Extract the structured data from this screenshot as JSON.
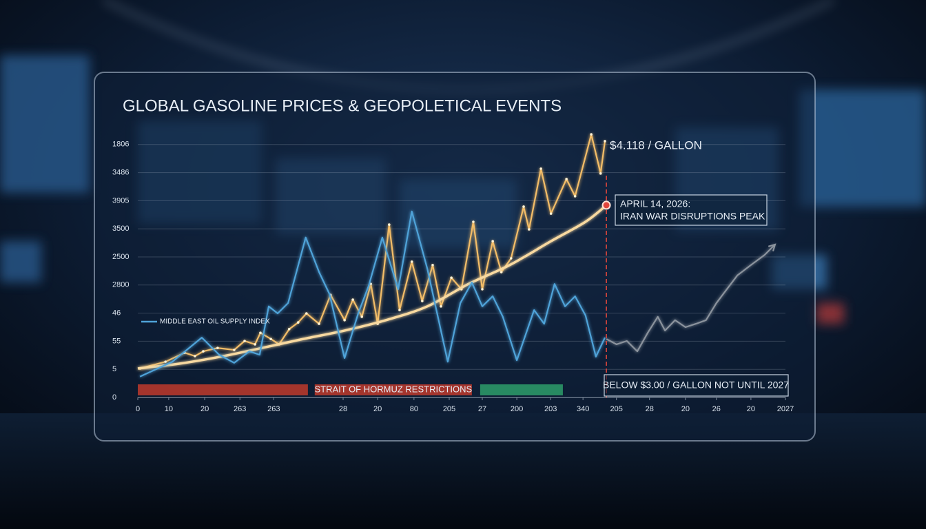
{
  "chart_data": {
    "type": "line",
    "title": "GLOBAL GASOLINE PRICES & GEOPOLETICAL EVENTS",
    "xlim": [
      0,
      18.01
    ],
    "xticks": [
      0,
      {
        "value": 0.86,
        "label": "10"
      },
      {
        "value": 1.86,
        "label": "20"
      },
      {
        "value": 2.84,
        "label": "263"
      },
      {
        "value": 3.78,
        "label": "263"
      },
      {
        "value": 5.71,
        "label": "28"
      },
      {
        "value": 6.67,
        "label": "20"
      },
      {
        "value": 7.68,
        "label": "80"
      },
      {
        "value": 8.66,
        "label": "205"
      },
      {
        "value": 9.58,
        "label": "27"
      },
      {
        "value": 10.54,
        "label": "200"
      },
      {
        "value": 11.48,
        "label": "203"
      },
      {
        "value": 12.38,
        "label": "340"
      },
      {
        "value": 13.31,
        "label": "205"
      },
      {
        "value": 14.23,
        "label": "28"
      },
      {
        "value": 15.23,
        "label": "20"
      },
      {
        "value": 16.09,
        "label": "26"
      },
      {
        "value": 17.05,
        "label": "20"
      },
      {
        "value": 18.01,
        "label": "2027"
      }
    ],
    "ylim": [
      0,
      9.5
    ],
    "yticks": [
      0,
      {
        "value": 1,
        "label": "5"
      },
      {
        "value": 2,
        "label": "55"
      },
      {
        "value": 3,
        "label": "46"
      },
      {
        "value": 4,
        "label": "2800"
      },
      {
        "value": 5,
        "label": "2500"
      },
      {
        "value": 6,
        "label": "3500"
      },
      {
        "value": 7,
        "label": "3905"
      },
      {
        "value": 8,
        "label": "3486"
      },
      {
        "value": 9,
        "label": "1806"
      }
    ],
    "grid": true,
    "series": [
      {
        "color": "#f3bd68",
        "x": [
          0.06,
          0.77,
          1.3,
          1.59,
          1.82,
          2.22,
          2.68,
          2.97,
          3.26,
          3.41,
          3.7,
          3.93,
          4.21,
          4.46,
          4.69,
          5.04,
          5.36,
          5.75,
          5.98,
          6.23,
          6.48,
          6.67,
          6.99,
          7.28,
          7.62,
          7.91,
          8.2,
          8.43,
          8.72,
          9.0,
          9.33,
          9.58,
          9.87,
          10.11,
          10.38,
          10.73,
          10.88,
          11.21,
          11.49,
          11.92,
          12.16,
          12.61,
          12.87,
          12.99
        ],
        "values": [
          1.03,
          1.27,
          1.59,
          1.47,
          1.64,
          1.76,
          1.69,
          2.01,
          1.89,
          2.3,
          2.08,
          1.89,
          2.43,
          2.67,
          2.99,
          2.62,
          3.65,
          2.75,
          3.48,
          2.87,
          4.04,
          2.62,
          6.15,
          3.11,
          4.83,
          3.43,
          4.71,
          3.24,
          4.26,
          3.85,
          6.25,
          3.85,
          5.56,
          4.46,
          4.95,
          6.79,
          5.98,
          8.14,
          6.54,
          7.77,
          7.16,
          9.36,
          7.97,
          9.12
        ]
      },
      {
        "color": "#f8d9a0",
        "smooth": true,
        "x": [
          0,
          1.15,
          2.3,
          3.45,
          4.6,
          5.75,
          6.9,
          8.05,
          9.2,
          10.34,
          11.49,
          12.45,
          13.03
        ],
        "values": [
          1.03,
          1.2,
          1.45,
          1.76,
          2.08,
          2.38,
          2.75,
          3.24,
          4.04,
          4.71,
          5.56,
          6.25,
          6.84
        ]
      },
      {
        "name": "MIDDLE EAST OIL SUPPLY INDEX",
        "color": "#4fa3d9",
        "x": [
          0.06,
          0.96,
          1.78,
          2.26,
          2.68,
          3.1,
          3.39,
          3.64,
          3.89,
          4.18,
          4.67,
          5.04,
          5.33,
          5.75,
          6.13,
          6.42,
          6.8,
          7.24,
          7.62,
          8.05,
          8.62,
          8.97,
          9.29,
          9.58,
          9.87,
          10.15,
          10.54,
          11.02,
          11.3,
          11.59,
          11.88,
          12.16,
          12.45,
          12.74,
          12.99
        ],
        "values": [
          0.74,
          1.27,
          2.13,
          1.52,
          1.23,
          1.64,
          1.52,
          3.24,
          2.99,
          3.36,
          5.69,
          4.46,
          3.68,
          1.4,
          2.99,
          3.97,
          5.69,
          3.85,
          6.62,
          4.58,
          1.27,
          3.36,
          4.09,
          3.24,
          3.6,
          2.87,
          1.32,
          3.11,
          2.62,
          4.04,
          3.24,
          3.6,
          2.92,
          1.45,
          2.13
        ]
      },
      {
        "color": "#8b939d",
        "arrow": true,
        "x": [
          13.03,
          13.31,
          13.6,
          13.89,
          14.18,
          14.46,
          14.66,
          14.94,
          15.23,
          15.52,
          15.8,
          16.09,
          16.38,
          16.67,
          17.05,
          17.43,
          17.72
        ],
        "values": [
          2.08,
          1.89,
          2.01,
          1.64,
          2.3,
          2.87,
          2.38,
          2.75,
          2.5,
          2.62,
          2.75,
          3.36,
          3.85,
          4.34,
          4.71,
          5.07,
          5.44
        ]
      }
    ],
    "spans": [
      {
        "color": "#c0392b",
        "x": [
          0,
          4.73
        ]
      },
      {
        "label": "STRAIT OF HORMUZ RESTRICTIONS",
        "color": "#c0392b",
        "x": [
          4.92,
          9.29
        ]
      },
      {
        "color": "#2e9e6a",
        "x": [
          9.52,
          11.82
        ]
      }
    ],
    "price_label": "$4.118 / GALLON",
    "event_label": [
      "APRIL 14, 2026:",
      "IRAN WAR DISRUPTIONS PEAK"
    ],
    "outlook_label": "BELOW $3.00 / GALLON NOT UNTIL 2027"
  }
}
